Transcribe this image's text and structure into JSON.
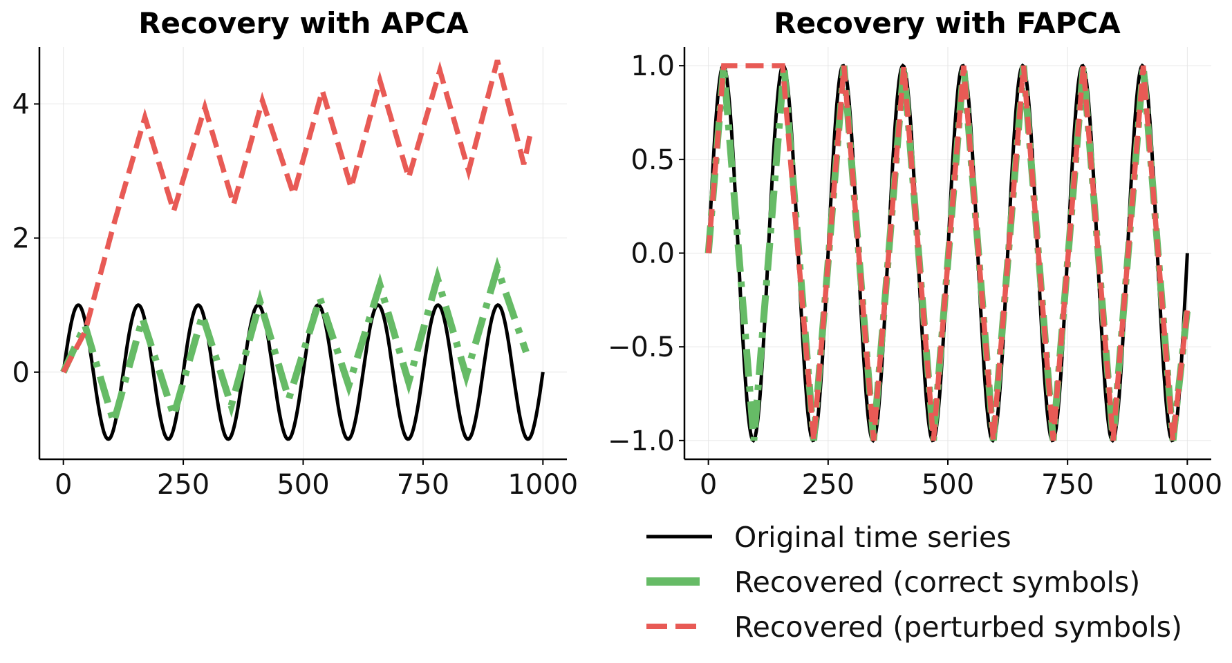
{
  "legend": {
    "entries": [
      {
        "label": "Original time series",
        "color": "#000000",
        "style": "solid"
      },
      {
        "label": "Recovered (correct symbols)",
        "color": "#66bb66",
        "style": "dashdot"
      },
      {
        "label": "Recovered (perturbed symbols)",
        "color": "#e85a55",
        "style": "dashed"
      }
    ]
  },
  "chart_data": [
    {
      "type": "line",
      "title": "Recovery with APCA",
      "xlim": [
        -50,
        1050
      ],
      "ylim": [
        -1.3,
        4.85
      ],
      "xticks": [
        0,
        250,
        500,
        750,
        1000
      ],
      "xtick_labels": [
        "0",
        "250",
        "500",
        "750",
        "1000"
      ],
      "yticks": [
        0,
        2,
        4
      ],
      "ytick_labels": [
        "0",
        "2",
        "4"
      ],
      "grid": true,
      "series": [
        {
          "name": "Original time series",
          "color": "#000000",
          "style": "solid",
          "function": "sin(2*pi*x/125)",
          "x_range": [
            0,
            1000
          ]
        },
        {
          "name": "Recovered (correct symbols)",
          "color": "#66bb66",
          "style": "dashdot",
          "x": [
            0,
            45,
            105,
            165,
            230,
            290,
            350,
            410,
            470,
            535,
            595,
            660,
            720,
            780,
            840,
            905,
            965
          ],
          "y": [
            0.0,
            0.7,
            -0.75,
            0.8,
            -0.65,
            0.85,
            -0.5,
            1.05,
            -0.4,
            1.1,
            -0.2,
            1.3,
            -0.15,
            1.4,
            -0.05,
            1.55,
            0.3
          ]
        },
        {
          "name": "Recovered (perturbed symbols)",
          "color": "#e85a55",
          "style": "dashed",
          "x": [
            0,
            45,
            105,
            170,
            230,
            295,
            355,
            415,
            480,
            540,
            600,
            660,
            720,
            785,
            845,
            905,
            960,
            975
          ],
          "y": [
            0.0,
            0.6,
            2.2,
            3.8,
            2.4,
            3.95,
            2.5,
            4.05,
            2.65,
            4.2,
            2.75,
            4.35,
            2.9,
            4.5,
            3.0,
            4.65,
            3.1,
            3.6
          ]
        }
      ]
    },
    {
      "type": "line",
      "title": "Recovery with FAPCA",
      "xlim": [
        -50,
        1050
      ],
      "ylim": [
        -1.1,
        1.1
      ],
      "xticks": [
        0,
        250,
        500,
        750,
        1000
      ],
      "xtick_labels": [
        "0",
        "250",
        "500",
        "750",
        "1000"
      ],
      "yticks": [
        -1.0,
        -0.5,
        0.0,
        0.5,
        1.0
      ],
      "ytick_labels": [
        "−1.0",
        "−0.5",
        "0.0",
        "0.5",
        "1.0"
      ],
      "grid": true,
      "series": [
        {
          "name": "Original time series",
          "color": "#000000",
          "style": "solid",
          "function": "sin(2*pi*x/125)",
          "x_range": [
            0,
            1000
          ]
        },
        {
          "name": "Recovered (correct symbols)",
          "color": "#66bb66",
          "style": "dashdot",
          "x": [
            0,
            32,
            95,
            158,
            220,
            283,
            345,
            408,
            470,
            533,
            595,
            658,
            720,
            783,
            845,
            908,
            970,
            1000
          ],
          "y": [
            0.0,
            1.0,
            -1.0,
            1.0,
            -1.0,
            1.0,
            -1.0,
            1.0,
            -1.0,
            1.0,
            -1.0,
            1.0,
            -1.0,
            1.0,
            -1.0,
            1.0,
            -1.0,
            -0.3
          ]
        },
        {
          "name": "Recovered (perturbed symbols)",
          "color": "#e85a55",
          "style": "dashed",
          "x": [
            0,
            32,
            155,
            220,
            283,
            345,
            408,
            470,
            533,
            595,
            658,
            720,
            783,
            845,
            908,
            970,
            1000
          ],
          "y": [
            0.0,
            1.0,
            1.0,
            -1.0,
            1.0,
            -1.0,
            1.0,
            -1.0,
            1.0,
            -1.0,
            1.0,
            -1.0,
            1.0,
            -1.0,
            1.0,
            -1.0,
            -0.3
          ]
        }
      ]
    }
  ]
}
